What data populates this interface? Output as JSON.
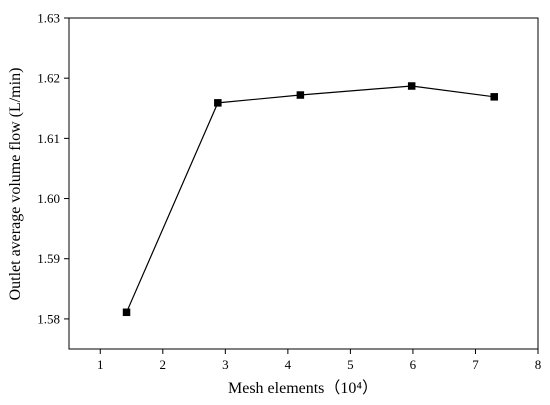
{
  "chart_data": {
    "type": "line",
    "xlabel": "Mesh elements（10⁴）",
    "ylabel": "Outlet average volume flow (L/min)",
    "xlim": [
      0.5,
      8
    ],
    "ylim": [
      1.575,
      1.63
    ],
    "xticks": [
      1,
      2,
      3,
      4,
      5,
      6,
      7,
      8
    ],
    "xtick_labels": [
      "1",
      "2",
      "3",
      "4",
      "5",
      "6",
      "7",
      "8"
    ],
    "yticks": [
      1.58,
      1.59,
      1.6,
      1.61,
      1.62,
      1.63
    ],
    "ytick_labels": [
      "1.58",
      "1.59",
      "1.60",
      "1.61",
      "1.62",
      "1.63"
    ],
    "grid": false,
    "legend": false,
    "marker": "square",
    "series": [
      {
        "x": [
          1.42,
          2.88,
          4.2,
          5.98,
          7.3
        ],
        "values": [
          1.5811,
          1.6159,
          1.6172,
          1.6187,
          1.6169
        ],
        "color": "#000000"
      }
    ]
  }
}
